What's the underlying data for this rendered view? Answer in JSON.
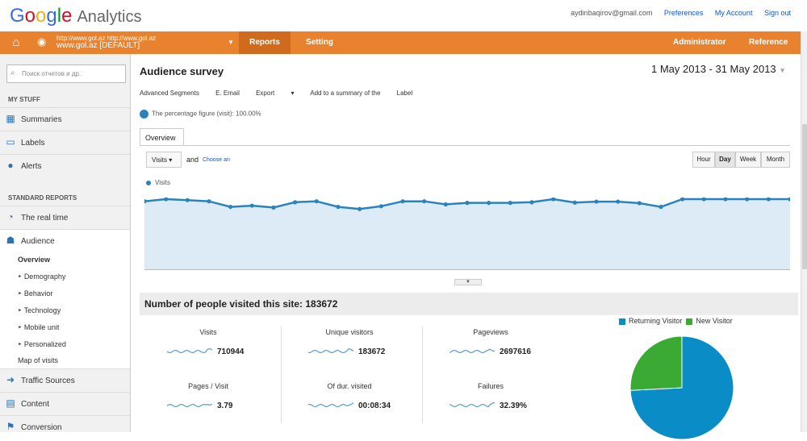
{
  "app": {
    "logo_google": [
      "G",
      "o",
      "o",
      "g",
      "l",
      "e"
    ],
    "logo_product": "Analytics",
    "email": "aydinbaqirov@gmail.com",
    "links": [
      "Preferences",
      "My Account",
      "Sign out"
    ]
  },
  "nav": {
    "account_url": "http://www.gol.az  http://www.gol.az",
    "account_name": "www.gol.az [DEFAULT]",
    "tabs": [
      "Reports",
      "Setting"
    ],
    "right": [
      "Administrator",
      "Reference"
    ]
  },
  "sidebar": {
    "search_placeholder": "Поиск отчетов и др.",
    "my_stuff": "MY STUFF",
    "my_items": [
      "Summaries",
      "Labels",
      "Alerts"
    ],
    "standard_reports": "STANDARD REPORTS",
    "realtime": "The real time",
    "audience": "Audience",
    "sub_items": [
      "Overview",
      "Demography",
      "Behavior",
      "Technology",
      "Mobile unit",
      "Personalized",
      "Map of visits"
    ],
    "bottom_items": [
      "Traffic Sources",
      "Content",
      "Conversion"
    ]
  },
  "main": {
    "title": "Audience survey",
    "date_range": "1 May 2013 - 31 May 2013",
    "toolbar": [
      "Advanced Segments",
      "E. Email",
      "Export",
      "Add to a summary of the",
      "Label"
    ],
    "percentage_text": "The percentage figure (visit): 100.00%",
    "overview_tab": "Overview",
    "metric": "Visits",
    "and": "and",
    "choose": "Choose an",
    "granularity": [
      "Hour",
      "Day",
      "Week",
      "Month"
    ],
    "legend": "Visits",
    "people_title": "Number of people visited this site: 183672",
    "stats": [
      {
        "label": "Visits",
        "value": "710944"
      },
      {
        "label": "Unique visitors",
        "value": "183672"
      },
      {
        "label": "Pageviews",
        "value": "2697616"
      },
      {
        "label": "Pages / Visit",
        "value": "3.79"
      },
      {
        "label": "Of dur. visited",
        "value": "00:08:34"
      },
      {
        "label": "Failures",
        "value": "32.39%"
      }
    ],
    "pie_legend": [
      "Returning Visitor",
      "New Visitor"
    ]
  },
  "colors": {
    "accent": "#e9822e",
    "series": "#2a83bd",
    "fill": "#dcebf6",
    "returning": "#0a8cc7",
    "new": "#3aaa35"
  },
  "chart_data": [
    {
      "type": "line",
      "series": [
        {
          "name": "Visits",
          "values": [
            22300,
            23300,
            22700,
            22300,
            20500,
            20900,
            20300,
            22000,
            22300,
            20500,
            19800,
            20700,
            22300,
            22300,
            21300,
            21800,
            21800,
            21800,
            22000,
            23600,
            21900,
            22200,
            22200,
            21700,
            20500,
            24000,
            23000,
            24200,
            28500,
            25800,
            24000
          ]
        }
      ],
      "x": [
        "1",
        "2",
        "3",
        "4",
        "5",
        "6",
        "7",
        "8",
        "9",
        "10",
        "11",
        "12",
        "13",
        "14",
        "15",
        "16",
        "17",
        "18",
        "19",
        "20",
        "21",
        "22",
        "23",
        "24",
        "25",
        "26",
        "27",
        "28",
        "29",
        "30",
        "31"
      ],
      "ylim": [
        0,
        40000
      ],
      "grid": true
    },
    {
      "type": "pie",
      "categories": [
        "Returning Visitor",
        "New Visitor"
      ],
      "values": [
        74.2,
        25.8
      ]
    }
  ]
}
